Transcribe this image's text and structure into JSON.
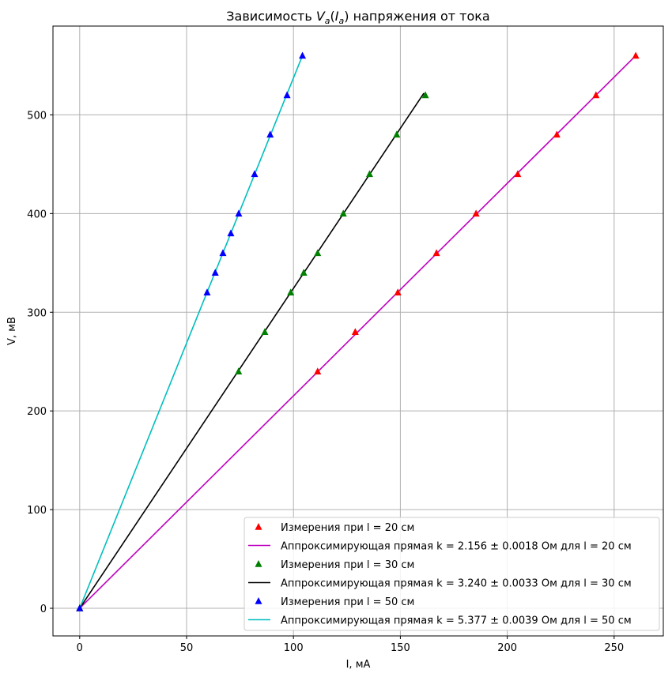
{
  "chart_data": {
    "type": "scatter",
    "title_main": "Зависимость ",
    "title_var": "V",
    "title_var_sub": "a",
    "title_paren_open": "(",
    "title_arg": "I",
    "title_arg_sub": "a",
    "title_paren_close": ")",
    "title_rest": " напряжения от тока",
    "xlabel": "I, мА",
    "ylabel": "V, мВ",
    "xlim": [
      -12.5,
      273
    ],
    "ylim": [
      -28,
      590
    ],
    "xticks": [
      0,
      50,
      100,
      150,
      200,
      250
    ],
    "yticks": [
      0,
      100,
      200,
      300,
      400,
      500
    ],
    "grid": true,
    "legend_position": "lower-right",
    "series": [
      {
        "name": "Измерения при l = 20 см",
        "kind": "markers",
        "color": "#ff0000",
        "marker": "triangle",
        "x": [
          0,
          111.3,
          128.9,
          148.8,
          166.9,
          185.4,
          204.9,
          223.2,
          241.5,
          260.1
        ],
        "y": [
          0,
          240,
          280,
          320,
          360,
          400,
          440,
          480,
          520,
          560
        ]
      },
      {
        "name": "Аппроксимирующая прямая k = 2.156 ± 0.0018 Ом для l = 20 см",
        "kind": "line",
        "color": "#bf00bf",
        "x": [
          0,
          260.1
        ],
        "y": [
          0,
          560
        ]
      },
      {
        "name": "Измерения при l = 30 см",
        "kind": "markers",
        "color": "#008000",
        "marker": "triangle",
        "x": [
          0,
          74.3,
          86.6,
          98.7,
          104.8,
          111.3,
          123.3,
          135.6,
          148.3,
          161.7
        ],
        "y": [
          0,
          240,
          280,
          320,
          340,
          360,
          400,
          440,
          480,
          520
        ]
      },
      {
        "name": "Аппроксимирующая прямая k = 3.240 ± 0.0033 Ом для l = 30 см",
        "kind": "line",
        "color": "#000000",
        "x": [
          0,
          161.0
        ],
        "y": [
          0,
          522
        ]
      },
      {
        "name": "Измерения при l = 50 см",
        "kind": "markers",
        "color": "#0000ff",
        "marker": "triangle",
        "x": [
          0,
          59.6,
          63.4,
          67.0,
          70.7,
          74.4,
          81.8,
          89.1,
          97.0,
          104.2
        ],
        "y": [
          0,
          320,
          340,
          360,
          380,
          400,
          440,
          480,
          520,
          560
        ]
      },
      {
        "name": "Аппроксимирующая прямая k = 5.377 ± 0.0039 Ом для l = 50 см",
        "kind": "line",
        "color": "#00bfbf",
        "x": [
          0,
          104.2
        ],
        "y": [
          0,
          560
        ]
      }
    ]
  }
}
